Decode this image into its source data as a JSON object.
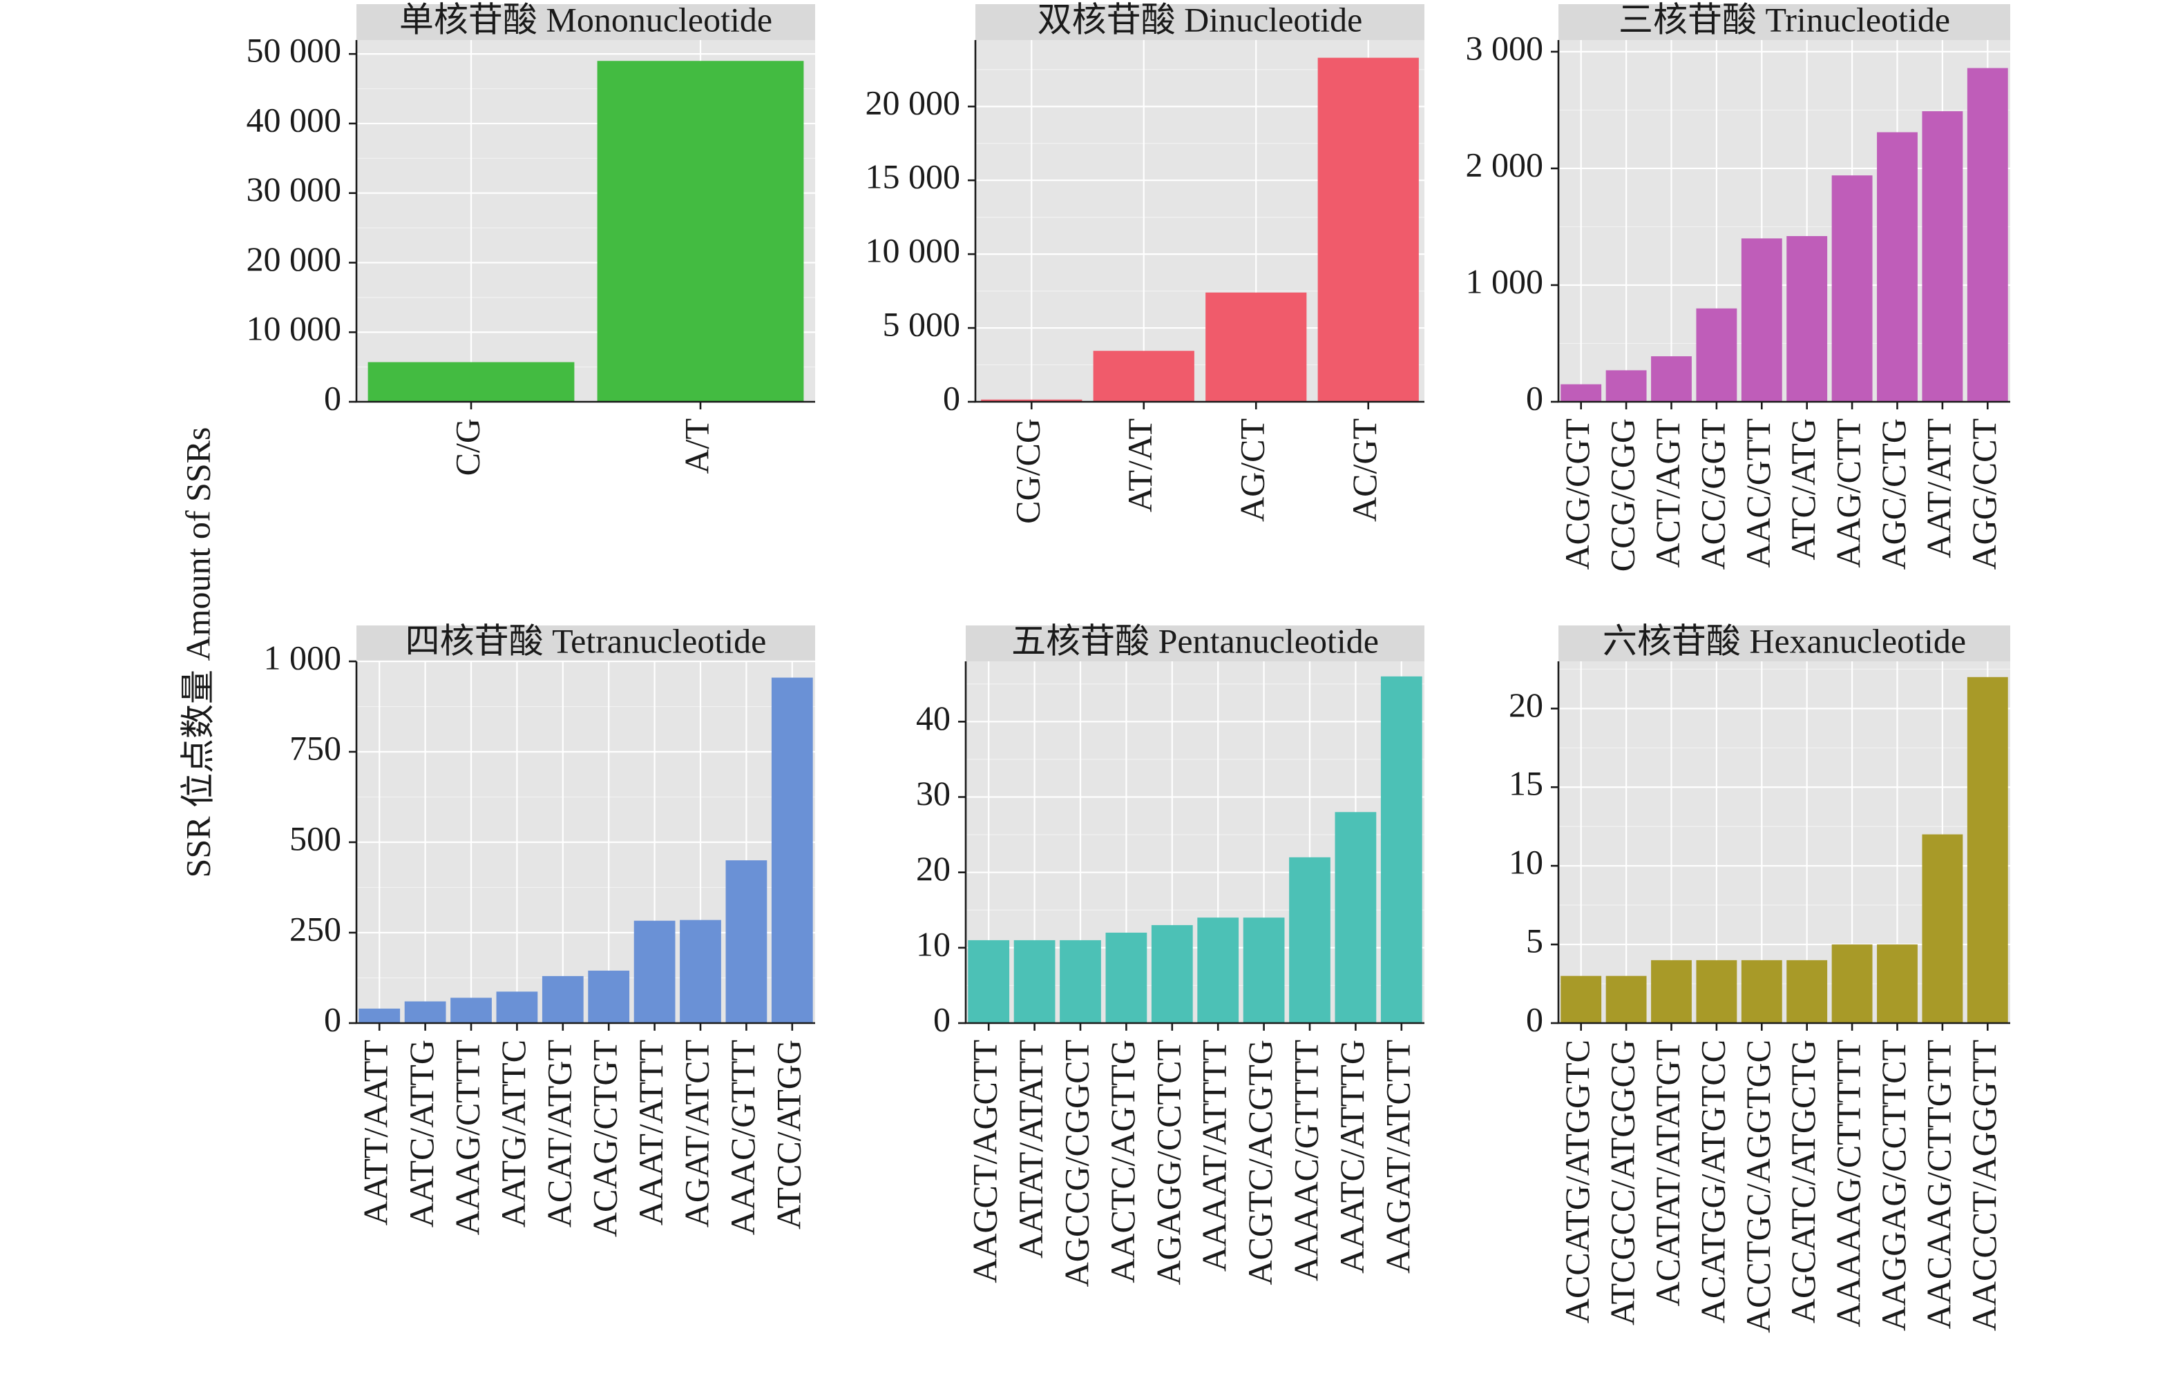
{
  "y_axis_title": "SSR 位点数量 Amount of SSRs",
  "chart_data": [
    {
      "type": "bar",
      "title": "单核苷酸  Mononucleotide",
      "color": "#43bb41",
      "categories": [
        "C/G",
        "A/T"
      ],
      "values": [
        5700,
        49000
      ],
      "ylim": [
        0,
        52000
      ],
      "yticks": [
        0,
        10000,
        20000,
        30000,
        40000,
        50000
      ],
      "ytick_labels": [
        "0",
        "10 000",
        "20 000",
        "30 000",
        "40 000",
        "50 000"
      ],
      "grid": true
    },
    {
      "type": "bar",
      "title": "双核苷酸  Dinucleotide",
      "color": "#f05b6b",
      "categories": [
        "CG/CG",
        "AT/AT",
        "AG/CT",
        "AC/GT"
      ],
      "values": [
        150,
        3450,
        7400,
        23300
      ],
      "ylim": [
        0,
        24500
      ],
      "yticks": [
        0,
        5000,
        10000,
        15000,
        20000
      ],
      "ytick_labels": [
        "0",
        "5 000",
        "10 000",
        "15 000",
        "20 000"
      ],
      "grid": true
    },
    {
      "type": "bar",
      "title": "三核苷酸  Trinucleotide",
      "color": "#bf5db9",
      "categories": [
        "ACG/CGT",
        "CCG/CGG",
        "ACT/AGT",
        "ACC/GGT",
        "AAC/GTT",
        "ATC/ATG",
        "AAG/CTT",
        "AGC/CTG",
        "AAT/ATT",
        "AGG/CCT"
      ],
      "values": [
        150,
        270,
        390,
        800,
        1400,
        1420,
        1940,
        2310,
        2490,
        2860
      ],
      "ylim": [
        0,
        3100
      ],
      "yticks": [
        0,
        1000,
        2000,
        3000
      ],
      "ytick_labels": [
        "0",
        "1 000",
        "2 000",
        "3 000"
      ],
      "grid": true
    },
    {
      "type": "bar",
      "title": "四核苷酸  Tetranucleotide",
      "color": "#6a91d6",
      "categories": [
        "AATT/AATT",
        "AATC/ATTG",
        "AAAG/CTTT",
        "AATG/ATTC",
        "ACAT/ATGT",
        "ACAG/CTGT",
        "AAAT/ATTT",
        "AGAT/ATCT",
        "AAAC/GTTT",
        "ATCC/ATGG"
      ],
      "values": [
        40,
        60,
        70,
        87,
        130,
        145,
        283,
        285,
        450,
        955
      ],
      "ylim": [
        0,
        1000
      ],
      "yticks": [
        0,
        250,
        500,
        750,
        1000
      ],
      "ytick_labels": [
        "0",
        "250",
        "500",
        "750",
        "1 000"
      ],
      "grid": true
    },
    {
      "type": "bar",
      "title": "五核苷酸  Pentanucleotide",
      "color": "#4cc1b6",
      "categories": [
        "AAGCT/AGCTT",
        "AATAT/ATATT",
        "AGCCG/CGGCT",
        "AACTC/AGTTG",
        "AGAGG/CCTCT",
        "AAAAT/ATTTT",
        "ACGTC/ACGTG",
        "AAAAC/GTTTT",
        "AAATC/ATTTG",
        "AAGAT/ATCTT"
      ],
      "values": [
        11,
        11,
        11,
        12,
        13,
        14,
        14,
        22,
        28,
        46
      ],
      "ylim": [
        0,
        48
      ],
      "yticks": [
        0,
        10,
        20,
        30,
        40
      ],
      "ytick_labels": [
        "0",
        "10",
        "20",
        "30",
        "40"
      ],
      "grid": true
    },
    {
      "type": "bar",
      "title": "六核苷酸  Hexanucleotide",
      "color": "#a89a28",
      "categories": [
        "ACCATG/ATGGTC",
        "ATCGCC/ATGGCG",
        "ACATAT/ATATGT",
        "ACATGG/ATGTCC",
        "ACCTGC/AGGTGC",
        "AGCATC/ATGCTG",
        "AAAAAG/CTTTTT",
        "AAGGAG/CCTTCT",
        "AACAAG/CTTGTT",
        "AACCCT/AGGGTT"
      ],
      "values": [
        3,
        3,
        4,
        4,
        4,
        4,
        5,
        5,
        12,
        22
      ],
      "ylim": [
        0,
        23
      ],
      "yticks": [
        0,
        5,
        10,
        15,
        20
      ],
      "ytick_labels": [
        "0",
        "5",
        "10",
        "15",
        "20"
      ],
      "grid": true
    }
  ]
}
